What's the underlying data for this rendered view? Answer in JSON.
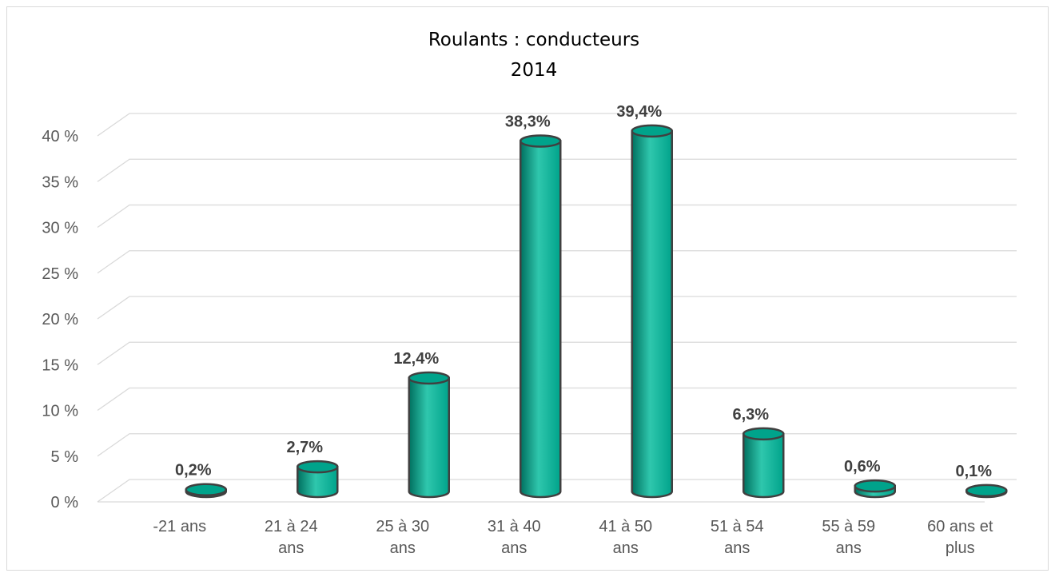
{
  "chart_data": {
    "type": "bar",
    "title": "Roulants : conducteurs",
    "subtitle": "2014",
    "categories": [
      [
        "-21 ans"
      ],
      [
        "21 à 24",
        "ans"
      ],
      [
        "25 à 30",
        "ans"
      ],
      [
        "31 à 40",
        "ans"
      ],
      [
        "41 à 50",
        "ans"
      ],
      [
        "51 à 54",
        "ans"
      ],
      [
        "55 à 59",
        "ans"
      ],
      [
        "60 ans et",
        "plus"
      ]
    ],
    "values": [
      0.2,
      2.7,
      12.4,
      38.3,
      39.4,
      6.3,
      0.6,
      0.1
    ],
    "data_labels": [
      "0,2%",
      "2,7%",
      "12,4%",
      "38,3%",
      "39,4%",
      "6,3%",
      "0,6%",
      "0,1%"
    ],
    "yticks": [
      0,
      5,
      10,
      15,
      20,
      25,
      30,
      35,
      40
    ],
    "ytick_labels": [
      "0 %",
      "5 %",
      "10 %",
      "15 %",
      "20 %",
      "25 %",
      "30 %",
      "35 %",
      "40 %"
    ],
    "ylim": [
      0,
      40
    ],
    "grid": true,
    "legend": "none",
    "bar_shape": "cylinder",
    "colors": {
      "bar": "#00a38b",
      "bar_dark": "#00705f",
      "bar_light": "#2fc7ad",
      "outline": "#404040",
      "grid": "#d9d9d9",
      "text": "#595959"
    }
  }
}
